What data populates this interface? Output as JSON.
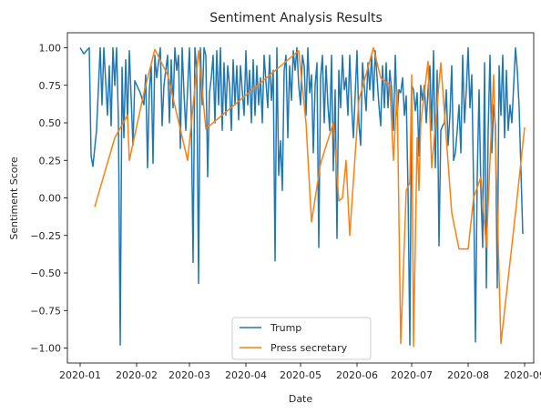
{
  "chart_data": {
    "type": "line",
    "title": "Sentiment Analysis Results",
    "xlabel": "Date",
    "ylabel": "Sentiment Score",
    "x_axis_type": "date",
    "xlim": [
      "2019-12-25",
      "2020-09-06"
    ],
    "ylim": [
      -1.1,
      1.1
    ],
    "x_ticks": [
      "2020-01-01",
      "2020-02-01",
      "2020-03-01",
      "2020-04-01",
      "2020-05-01",
      "2020-06-01",
      "2020-07-01",
      "2020-08-01",
      "2020-09-01"
    ],
    "x_tick_labels": [
      "2020-01",
      "2020-02",
      "2020-03",
      "2020-04",
      "2020-05",
      "2020-06",
      "2020-07",
      "2020-08",
      "2020-09"
    ],
    "y_ticks": [
      -1.0,
      -0.75,
      -0.5,
      -0.25,
      0.0,
      0.25,
      0.5,
      0.75,
      1.0
    ],
    "y_tick_labels": [
      "−1.00",
      "−0.75",
      "−0.50",
      "−0.25",
      "0.00",
      "0.25",
      "0.50",
      "0.75",
      "1.00"
    ],
    "grid": false,
    "legend_position": "lower center",
    "series": [
      {
        "name": "Trump",
        "color": "#1f77b4",
        "points": [
          [
            "2020-01-01",
            1.0
          ],
          [
            "2020-01-03",
            0.96
          ],
          [
            "2020-01-06",
            1.0
          ],
          [
            "2020-01-07",
            0.28
          ],
          [
            "2020-01-08",
            0.21
          ],
          [
            "2020-01-10",
            0.45
          ],
          [
            "2020-01-12",
            1.0
          ],
          [
            "2020-01-13",
            0.62
          ],
          [
            "2020-01-14",
            1.0
          ],
          [
            "2020-01-15",
            0.78
          ],
          [
            "2020-01-16",
            0.55
          ],
          [
            "2020-01-17",
            0.88
          ],
          [
            "2020-01-18",
            0.48
          ],
          [
            "2020-01-19",
            1.0
          ],
          [
            "2020-01-20",
            0.75
          ],
          [
            "2020-01-21",
            1.0
          ],
          [
            "2020-01-22",
            0.52
          ],
          [
            "2020-01-23",
            -0.98
          ],
          [
            "2020-01-24",
            0.87
          ],
          [
            "2020-01-25",
            0.4
          ],
          [
            "2020-01-26",
            0.92
          ],
          [
            "2020-01-27",
            0.52
          ],
          [
            "2020-01-28",
            0.98
          ],
          [
            "2020-01-30",
            0.35
          ],
          [
            "2020-01-31",
            0.78
          ],
          [
            "2020-02-03",
            0.7
          ],
          [
            "2020-02-05",
            0.62
          ],
          [
            "2020-02-06",
            0.82
          ],
          [
            "2020-02-07",
            0.2
          ],
          [
            "2020-02-08",
            0.72
          ],
          [
            "2020-02-09",
            0.88
          ],
          [
            "2020-02-10",
            0.23
          ],
          [
            "2020-02-11",
            0.95
          ],
          [
            "2020-02-12",
            0.8
          ],
          [
            "2020-02-14",
            1.0
          ],
          [
            "2020-02-15",
            0.48
          ],
          [
            "2020-02-16",
            0.75
          ],
          [
            "2020-02-18",
            0.95
          ],
          [
            "2020-02-19",
            0.5
          ],
          [
            "2020-02-20",
            0.92
          ],
          [
            "2020-02-21",
            0.6
          ],
          [
            "2020-02-22",
            1.0
          ],
          [
            "2020-02-23",
            0.85
          ],
          [
            "2020-02-24",
            0.95
          ],
          [
            "2020-02-25",
            0.33
          ],
          [
            "2020-02-26",
            1.0
          ],
          [
            "2020-02-27",
            0.7
          ],
          [
            "2020-02-28",
            0.45
          ],
          [
            "2020-03-01",
            1.0
          ],
          [
            "2020-03-02",
            0.55
          ],
          [
            "2020-03-03",
            -0.43
          ],
          [
            "2020-03-04",
            1.0
          ],
          [
            "2020-03-05",
            0.85
          ],
          [
            "2020-03-06",
            -0.57
          ],
          [
            "2020-03-07",
            1.0
          ],
          [
            "2020-03-08",
            0.62
          ],
          [
            "2020-03-09",
            1.0
          ],
          [
            "2020-03-10",
            0.95
          ],
          [
            "2020-03-11",
            0.14
          ],
          [
            "2020-03-12",
            0.7
          ],
          [
            "2020-03-13",
            0.8
          ],
          [
            "2020-03-14",
            0.95
          ],
          [
            "2020-03-15",
            0.5
          ],
          [
            "2020-03-16",
            0.98
          ],
          [
            "2020-03-17",
            0.62
          ],
          [
            "2020-03-18",
            1.0
          ],
          [
            "2020-03-19",
            0.45
          ],
          [
            "2020-03-20",
            0.9
          ],
          [
            "2020-03-21",
            0.55
          ],
          [
            "2020-03-22",
            0.88
          ],
          [
            "2020-03-23",
            0.75
          ],
          [
            "2020-03-24",
            0.45
          ],
          [
            "2020-03-25",
            0.92
          ],
          [
            "2020-03-26",
            0.62
          ],
          [
            "2020-03-27",
            0.88
          ],
          [
            "2020-03-28",
            0.52
          ],
          [
            "2020-03-29",
            0.88
          ],
          [
            "2020-03-31",
            0.55
          ],
          [
            "2020-04-01",
            0.98
          ],
          [
            "2020-04-02",
            0.62
          ],
          [
            "2020-04-03",
            0.85
          ],
          [
            "2020-04-04",
            0.5
          ],
          [
            "2020-04-05",
            0.92
          ],
          [
            "2020-04-06",
            0.55
          ],
          [
            "2020-04-07",
            0.88
          ],
          [
            "2020-04-08",
            0.62
          ],
          [
            "2020-04-09",
            0.8
          ],
          [
            "2020-04-10",
            0.5
          ],
          [
            "2020-04-11",
            0.95
          ],
          [
            "2020-04-13",
            0.6
          ],
          [
            "2020-04-14",
            0.95
          ],
          [
            "2020-04-15",
            0.65
          ],
          [
            "2020-04-16",
            0.85
          ],
          [
            "2020-04-17",
            -0.42
          ],
          [
            "2020-04-18",
            1.0
          ],
          [
            "2020-04-19",
            0.15
          ],
          [
            "2020-04-20",
            0.38
          ],
          [
            "2020-04-21",
            0.05
          ],
          [
            "2020-04-22",
            0.85
          ],
          [
            "2020-04-23",
            0.95
          ],
          [
            "2020-04-24",
            0.4
          ],
          [
            "2020-04-25",
            0.88
          ],
          [
            "2020-04-26",
            0.65
          ],
          [
            "2020-04-27",
            0.98
          ],
          [
            "2020-04-28",
            0.85
          ],
          [
            "2020-04-29",
            1.0
          ],
          [
            "2020-04-30",
            0.75
          ],
          [
            "2020-05-01",
            0.62
          ],
          [
            "2020-05-02",
            0.95
          ],
          [
            "2020-05-03",
            0.88
          ],
          [
            "2020-05-04",
            0.55
          ],
          [
            "2020-05-05",
            1.0
          ],
          [
            "2020-05-06",
            0.7
          ],
          [
            "2020-05-07",
            0.82
          ],
          [
            "2020-05-08",
            0.3
          ],
          [
            "2020-05-09",
            0.75
          ],
          [
            "2020-05-10",
            0.9
          ],
          [
            "2020-05-11",
            -0.33
          ],
          [
            "2020-05-12",
            0.8
          ],
          [
            "2020-05-13",
            0.95
          ],
          [
            "2020-05-14",
            0.5
          ],
          [
            "2020-05-15",
            0.88
          ],
          [
            "2020-05-16",
            0.62
          ],
          [
            "2020-05-17",
            0.45
          ],
          [
            "2020-05-18",
            0.95
          ],
          [
            "2020-05-19",
            0.18
          ],
          [
            "2020-05-20",
            0.72
          ],
          [
            "2020-05-21",
            -0.27
          ],
          [
            "2020-05-22",
            0.85
          ],
          [
            "2020-05-23",
            0.6
          ],
          [
            "2020-05-24",
            0.95
          ],
          [
            "2020-05-25",
            0.72
          ],
          [
            "2020-05-26",
            0.8
          ],
          [
            "2020-05-27",
            0.55
          ],
          [
            "2020-05-28",
            0.95
          ],
          [
            "2020-05-29",
            0.62
          ],
          [
            "2020-05-30",
            0.4
          ],
          [
            "2020-06-01",
            0.98
          ],
          [
            "2020-06-02",
            0.5
          ],
          [
            "2020-06-03",
            0.35
          ],
          [
            "2020-06-04",
            0.9
          ],
          [
            "2020-06-06",
            0.58
          ],
          [
            "2020-06-07",
            0.9
          ],
          [
            "2020-06-08",
            0.72
          ],
          [
            "2020-06-09",
            0.95
          ],
          [
            "2020-06-10",
            0.65
          ],
          [
            "2020-06-11",
            0.98
          ],
          [
            "2020-06-12",
            0.8
          ],
          [
            "2020-06-13",
            0.62
          ],
          [
            "2020-06-14",
            0.48
          ],
          [
            "2020-06-15",
            0.88
          ],
          [
            "2020-06-16",
            0.6
          ],
          [
            "2020-06-17",
            0.9
          ],
          [
            "2020-06-18",
            0.6
          ],
          [
            "2020-06-19",
            0.85
          ],
          [
            "2020-06-20",
            0.72
          ],
          [
            "2020-06-21",
            0.45
          ],
          [
            "2020-06-22",
            0.95
          ],
          [
            "2020-06-23",
            0.55
          ],
          [
            "2020-06-24",
            0.72
          ],
          [
            "2020-06-25",
            0.7
          ],
          [
            "2020-06-26",
            0.8
          ],
          [
            "2020-06-27",
            0.55
          ],
          [
            "2020-06-28",
            0.68
          ],
          [
            "2020-06-29",
            0.05
          ],
          [
            "2020-06-30",
            -0.98
          ],
          [
            "2020-07-01",
            0.75
          ],
          [
            "2020-07-02",
            0.72
          ],
          [
            "2020-07-03",
            0.58
          ],
          [
            "2020-07-04",
            0.7
          ],
          [
            "2020-07-05",
            0.28
          ],
          [
            "2020-07-06",
            0.75
          ],
          [
            "2020-07-07",
            0.65
          ],
          [
            "2020-07-08",
            0.75
          ],
          [
            "2020-07-09",
            0.5
          ],
          [
            "2020-07-10",
            0.72
          ],
          [
            "2020-07-11",
            0.88
          ],
          [
            "2020-07-12",
            0.45
          ],
          [
            "2020-07-13",
            0.98
          ],
          [
            "2020-07-14",
            0.2
          ],
          [
            "2020-07-15",
            0.85
          ],
          [
            "2020-07-16",
            -0.32
          ],
          [
            "2020-07-17",
            0.45
          ],
          [
            "2020-07-18",
            0.48
          ],
          [
            "2020-07-19",
            0.5
          ],
          [
            "2020-07-20",
            0.72
          ],
          [
            "2020-07-21",
            0.35
          ],
          [
            "2020-07-22",
            0.55
          ],
          [
            "2020-07-23",
            0.88
          ],
          [
            "2020-07-24",
            0.25
          ],
          [
            "2020-07-25",
            0.3
          ],
          [
            "2020-07-26",
            0.45
          ],
          [
            "2020-07-27",
            0.62
          ],
          [
            "2020-07-28",
            0.3
          ],
          [
            "2020-07-29",
            0.95
          ],
          [
            "2020-07-30",
            0.5
          ],
          [
            "2020-07-31",
            0.72
          ],
          [
            "2020-08-01",
            1.0
          ],
          [
            "2020-08-02",
            0.6
          ],
          [
            "2020-08-03",
            0.82
          ],
          [
            "2020-08-04",
            0.08
          ],
          [
            "2020-08-05",
            -0.96
          ],
          [
            "2020-08-06",
            0.15
          ],
          [
            "2020-08-07",
            0.72
          ],
          [
            "2020-08-08",
            0.05
          ],
          [
            "2020-08-09",
            -0.33
          ],
          [
            "2020-08-10",
            0.9
          ],
          [
            "2020-08-11",
            -0.6
          ],
          [
            "2020-08-12",
            0.45
          ],
          [
            "2020-08-13",
            0.95
          ],
          [
            "2020-08-14",
            0.3
          ],
          [
            "2020-08-15",
            0.62
          ],
          [
            "2020-08-16",
            0.48
          ],
          [
            "2020-08-17",
            -0.6
          ],
          [
            "2020-08-18",
            0.88
          ],
          [
            "2020-08-19",
            0.55
          ],
          [
            "2020-08-20",
            0.95
          ],
          [
            "2020-08-21",
            0.4
          ],
          [
            "2020-08-22",
            0.85
          ],
          [
            "2020-08-23",
            0.45
          ],
          [
            "2020-08-24",
            0.62
          ],
          [
            "2020-08-25",
            0.5
          ],
          [
            "2020-08-26",
            0.75
          ],
          [
            "2020-08-27",
            1.0
          ],
          [
            "2020-08-28",
            0.85
          ],
          [
            "2020-08-29",
            0.6
          ],
          [
            "2020-08-31",
            -0.24
          ]
        ]
      },
      {
        "name": "Press secretary",
        "color": "#ff7f0e",
        "points": [
          [
            "2020-01-09",
            -0.06
          ],
          [
            "2020-01-20",
            0.4
          ],
          [
            "2020-01-27",
            0.55
          ],
          [
            "2020-01-28",
            0.25
          ],
          [
            "2020-02-05",
            0.7
          ],
          [
            "2020-02-11",
            0.99
          ],
          [
            "2020-02-18",
            0.82
          ],
          [
            "2020-02-29",
            0.25
          ],
          [
            "2020-03-06",
            0.98
          ],
          [
            "2020-03-10",
            0.46
          ],
          [
            "2020-04-30",
            0.98
          ],
          [
            "2020-05-04",
            0.5
          ],
          [
            "2020-05-07",
            -0.16
          ],
          [
            "2020-05-12",
            0.23
          ],
          [
            "2020-05-19",
            0.5
          ],
          [
            "2020-05-22",
            -0.02
          ],
          [
            "2020-05-24",
            0.0
          ],
          [
            "2020-05-26",
            0.25
          ],
          [
            "2020-05-28",
            -0.25
          ],
          [
            "2020-06-02",
            0.65
          ],
          [
            "2020-06-10",
            1.0
          ],
          [
            "2020-06-14",
            0.8
          ],
          [
            "2020-06-19",
            0.75
          ],
          [
            "2020-06-21",
            0.25
          ],
          [
            "2020-06-23",
            0.72
          ],
          [
            "2020-06-25",
            -0.97
          ],
          [
            "2020-06-28",
            0.05
          ],
          [
            "2020-06-30",
            0.1
          ],
          [
            "2020-07-01",
            0.82
          ],
          [
            "2020-07-02",
            -0.99
          ],
          [
            "2020-07-04",
            0.4
          ],
          [
            "2020-07-05",
            0.05
          ],
          [
            "2020-07-06",
            0.5
          ],
          [
            "2020-07-10",
            0.91
          ],
          [
            "2020-07-12",
            0.2
          ],
          [
            "2020-07-17",
            0.9
          ],
          [
            "2020-07-23",
            -0.1
          ],
          [
            "2020-07-27",
            -0.34
          ],
          [
            "2020-08-01",
            -0.34
          ],
          [
            "2020-08-04",
            0.0
          ],
          [
            "2020-08-08",
            0.14
          ],
          [
            "2020-08-11",
            -0.33
          ],
          [
            "2020-08-15",
            0.82
          ],
          [
            "2020-08-19",
            -0.97
          ],
          [
            "2020-08-27",
            -0.1
          ],
          [
            "2020-09-01",
            0.47
          ]
        ]
      }
    ]
  }
}
